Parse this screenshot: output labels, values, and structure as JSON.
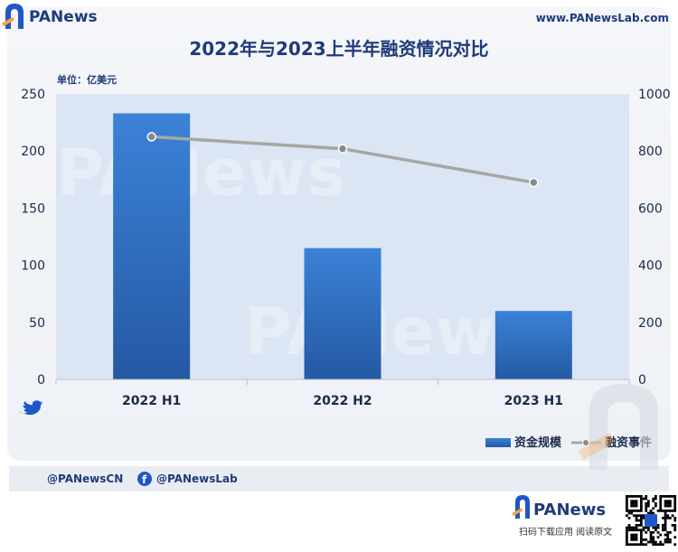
{
  "header": {
    "brand": "PANews",
    "url": "www.PANewsLab.com"
  },
  "chart_data": {
    "type": "bar",
    "title": "2022年与2023上半年融资情况对比",
    "unit_label": "单位：亿美元",
    "categories": [
      "2022 H1",
      "2022 H2",
      "2023 H1"
    ],
    "series": [
      {
        "name": "资金规模",
        "kind": "bar",
        "axis": "left",
        "values": [
          233,
          115,
          60
        ],
        "color": "#2f72c4"
      },
      {
        "name": "融资事件",
        "kind": "line",
        "axis": "right",
        "values": [
          850,
          808,
          690
        ],
        "color": "#a6a6a6"
      }
    ],
    "ylim_left": [
      0,
      250
    ],
    "yticks_left": [
      "0",
      "50",
      "100",
      "150",
      "200",
      "250"
    ],
    "ylim_right": [
      0,
      1000
    ],
    "yticks_right": [
      "0",
      "200",
      "400",
      "600",
      "800",
      "1000"
    ],
    "legend_position": "bottom-right",
    "grid": false,
    "watermark": "PANews"
  },
  "footer": {
    "twitter_handle": "@PANewsCN",
    "facebook_handle": "@PANewsLab",
    "brand": "PANews",
    "app_caption": "扫码下载应用  阅读原文"
  },
  "colors": {
    "title": "#1f3b7a",
    "plot_bg": "#dbe5f3",
    "bar": "#2f72c4",
    "line": "#a6a6a6",
    "accent_orange": "#f5a142",
    "accent_blue": "#1f56c8"
  }
}
